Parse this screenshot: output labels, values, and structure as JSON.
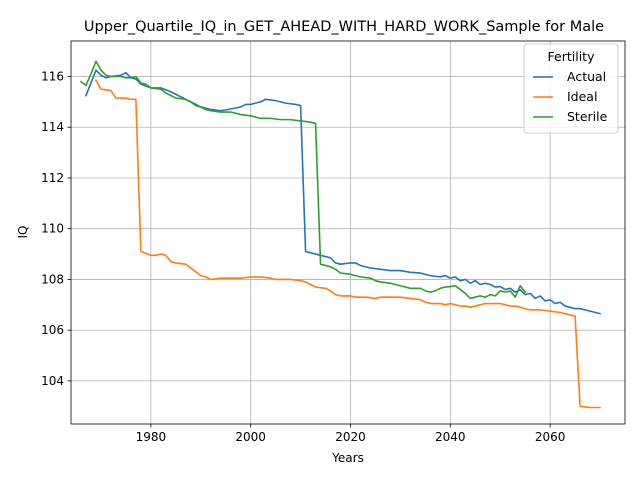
{
  "chart_data": {
    "type": "line",
    "title": "Upper_Quartile_IQ_in_GET_AHEAD_WITH_HARD_WORK_Sample for Male",
    "xlabel": "Years",
    "ylabel": "IQ",
    "xlim": [
      1964,
      2075
    ],
    "ylim": [
      102.3,
      117.4
    ],
    "xticks": [
      1980,
      2000,
      2020,
      2040,
      2060
    ],
    "yticks": [
      104,
      106,
      108,
      110,
      112,
      114,
      116
    ],
    "grid": true,
    "legend": {
      "title": "Fertility",
      "position": "top-right"
    },
    "series": [
      {
        "name": "Actual",
        "color": "#1f77b4",
        "points": [
          [
            1967,
            115.25
          ],
          [
            1969,
            116.25
          ],
          [
            1970,
            116.05
          ],
          [
            1971,
            115.95
          ],
          [
            1972,
            116.0
          ],
          [
            1974,
            116.05
          ],
          [
            1975,
            116.15
          ],
          [
            1976,
            115.95
          ],
          [
            1977,
            115.9
          ],
          [
            1978,
            115.7
          ],
          [
            1980,
            115.55
          ],
          [
            1982,
            115.55
          ],
          [
            1984,
            115.4
          ],
          [
            1986,
            115.2
          ],
          [
            1988,
            115.0
          ],
          [
            1990,
            114.8
          ],
          [
            1992,
            114.7
          ],
          [
            1994,
            114.65
          ],
          [
            1996,
            114.72
          ],
          [
            1998,
            114.8
          ],
          [
            1999,
            114.9
          ],
          [
            2000,
            114.9
          ],
          [
            2002,
            115.0
          ],
          [
            2003,
            115.1
          ],
          [
            2005,
            115.05
          ],
          [
            2007,
            114.95
          ],
          [
            2009,
            114.9
          ],
          [
            2010,
            114.85
          ],
          [
            2011,
            109.1
          ],
          [
            2012,
            109.05
          ],
          [
            2014,
            108.95
          ],
          [
            2016,
            108.85
          ],
          [
            2017,
            108.65
          ],
          [
            2018,
            108.6
          ],
          [
            2020,
            108.65
          ],
          [
            2021,
            108.65
          ],
          [
            2022,
            108.55
          ],
          [
            2024,
            108.45
          ],
          [
            2026,
            108.4
          ],
          [
            2028,
            108.35
          ],
          [
            2030,
            108.35
          ],
          [
            2032,
            108.28
          ],
          [
            2034,
            108.25
          ],
          [
            2035,
            108.2
          ],
          [
            2036,
            108.15
          ],
          [
            2038,
            108.1
          ],
          [
            2039,
            108.15
          ],
          [
            2040,
            108.05
          ],
          [
            2041,
            108.1
          ],
          [
            2042,
            107.95
          ],
          [
            2043,
            108.0
          ],
          [
            2044,
            107.85
          ],
          [
            2045,
            107.95
          ],
          [
            2046,
            107.8
          ],
          [
            2047,
            107.85
          ],
          [
            2048,
            107.8
          ],
          [
            2049,
            107.7
          ],
          [
            2050,
            107.72
          ],
          [
            2051,
            107.6
          ],
          [
            2052,
            107.65
          ],
          [
            2053,
            107.5
          ],
          [
            2054,
            107.6
          ],
          [
            2055,
            107.4
          ],
          [
            2056,
            107.45
          ],
          [
            2057,
            107.25
          ],
          [
            2058,
            107.35
          ],
          [
            2059,
            107.15
          ],
          [
            2060,
            107.2
          ],
          [
            2061,
            107.05
          ],
          [
            2062,
            107.1
          ],
          [
            2063,
            106.95
          ],
          [
            2064,
            106.9
          ],
          [
            2065,
            106.85
          ],
          [
            2066,
            106.85
          ],
          [
            2067,
            106.8
          ],
          [
            2068,
            106.75
          ],
          [
            2069,
            106.7
          ],
          [
            2070,
            106.65
          ]
        ]
      },
      {
        "name": "Ideal",
        "color": "#ff7f0e",
        "points": [
          [
            1969,
            115.85
          ],
          [
            1970,
            115.5
          ],
          [
            1972,
            115.45
          ],
          [
            1973,
            115.15
          ],
          [
            1975,
            115.15
          ],
          [
            1976,
            115.1
          ],
          [
            1977,
            115.1
          ],
          [
            1978,
            109.1
          ],
          [
            1980,
            108.95
          ],
          [
            1981,
            108.95
          ],
          [
            1982,
            109.0
          ],
          [
            1983,
            108.95
          ],
          [
            1984,
            108.7
          ],
          [
            1985,
            108.65
          ],
          [
            1987,
            108.6
          ],
          [
            1988,
            108.45
          ],
          [
            1989,
            108.3
          ],
          [
            1990,
            108.15
          ],
          [
            1991,
            108.1
          ],
          [
            1992,
            108.0
          ],
          [
            1994,
            108.05
          ],
          [
            1996,
            108.05
          ],
          [
            1998,
            108.05
          ],
          [
            2000,
            108.1
          ],
          [
            2002,
            108.1
          ],
          [
            2004,
            108.05
          ],
          [
            2005,
            108.0
          ],
          [
            2006,
            108.0
          ],
          [
            2008,
            108.0
          ],
          [
            2010,
            107.95
          ],
          [
            2011,
            107.9
          ],
          [
            2012,
            107.8
          ],
          [
            2013,
            107.7
          ],
          [
            2015,
            107.65
          ],
          [
            2016,
            107.55
          ],
          [
            2017,
            107.4
          ],
          [
            2018,
            107.35
          ],
          [
            2020,
            107.35
          ],
          [
            2021,
            107.3
          ],
          [
            2023,
            107.3
          ],
          [
            2025,
            107.25
          ],
          [
            2026,
            107.3
          ],
          [
            2027,
            107.3
          ],
          [
            2028,
            107.3
          ],
          [
            2030,
            107.3
          ],
          [
            2032,
            107.25
          ],
          [
            2034,
            107.2
          ],
          [
            2035,
            107.1
          ],
          [
            2036,
            107.05
          ],
          [
            2038,
            107.05
          ],
          [
            2039,
            107.0
          ],
          [
            2040,
            107.05
          ],
          [
            2041,
            107.0
          ],
          [
            2042,
            106.95
          ],
          [
            2043,
            106.95
          ],
          [
            2044,
            106.9
          ],
          [
            2045,
            106.95
          ],
          [
            2046,
            107.0
          ],
          [
            2047,
            107.05
          ],
          [
            2048,
            107.05
          ],
          [
            2050,
            107.05
          ],
          [
            2051,
            107.0
          ],
          [
            2052,
            106.95
          ],
          [
            2053,
            106.95
          ],
          [
            2054,
            106.9
          ],
          [
            2055,
            106.85
          ],
          [
            2056,
            106.8
          ],
          [
            2058,
            106.8
          ],
          [
            2060,
            106.75
          ],
          [
            2062,
            106.7
          ],
          [
            2063,
            106.65
          ],
          [
            2064,
            106.6
          ],
          [
            2065,
            106.55
          ],
          [
            2066,
            103.0
          ],
          [
            2068,
            102.95
          ],
          [
            2070,
            102.95
          ]
        ]
      },
      {
        "name": "Sterile",
        "color": "#2ca02c",
        "points": [
          [
            1966,
            115.8
          ],
          [
            1967,
            115.65
          ],
          [
            1968,
            116.1
          ],
          [
            1969,
            116.6
          ],
          [
            1970,
            116.25
          ],
          [
            1971,
            116.05
          ],
          [
            1972,
            116.0
          ],
          [
            1974,
            116.0
          ],
          [
            1975,
            115.95
          ],
          [
            1976,
            115.95
          ],
          [
            1977,
            116.0
          ],
          [
            1978,
            115.75
          ],
          [
            1979,
            115.7
          ],
          [
            1980,
            115.55
          ],
          [
            1982,
            115.5
          ],
          [
            1983,
            115.35
          ],
          [
            1984,
            115.25
          ],
          [
            1985,
            115.15
          ],
          [
            1987,
            115.1
          ],
          [
            1988,
            115.0
          ],
          [
            1989,
            114.85
          ],
          [
            1990,
            114.8
          ],
          [
            1991,
            114.7
          ],
          [
            1992,
            114.65
          ],
          [
            1994,
            114.6
          ],
          [
            1996,
            114.6
          ],
          [
            1998,
            114.5
          ],
          [
            2000,
            114.45
          ],
          [
            2002,
            114.35
          ],
          [
            2004,
            114.35
          ],
          [
            2006,
            114.3
          ],
          [
            2008,
            114.3
          ],
          [
            2010,
            114.25
          ],
          [
            2012,
            114.2
          ],
          [
            2013,
            114.15
          ],
          [
            2014,
            108.6
          ],
          [
            2016,
            108.5
          ],
          [
            2017,
            108.4
          ],
          [
            2018,
            108.25
          ],
          [
            2020,
            108.2
          ],
          [
            2022,
            108.1
          ],
          [
            2024,
            108.05
          ],
          [
            2025,
            107.95
          ],
          [
            2026,
            107.9
          ],
          [
            2028,
            107.85
          ],
          [
            2030,
            107.75
          ],
          [
            2032,
            107.65
          ],
          [
            2034,
            107.65
          ],
          [
            2035,
            107.55
          ],
          [
            2036,
            107.5
          ],
          [
            2037,
            107.55
          ],
          [
            2038,
            107.65
          ],
          [
            2039,
            107.7
          ],
          [
            2040,
            107.72
          ],
          [
            2041,
            107.75
          ],
          [
            2042,
            107.6
          ],
          [
            2043,
            107.45
          ],
          [
            2044,
            107.25
          ],
          [
            2045,
            107.3
          ],
          [
            2046,
            107.35
          ],
          [
            2047,
            107.3
          ],
          [
            2048,
            107.4
          ],
          [
            2049,
            107.35
          ],
          [
            2050,
            107.55
          ],
          [
            2051,
            107.5
          ],
          [
            2052,
            107.55
          ],
          [
            2053,
            107.3
          ],
          [
            2054,
            107.75
          ],
          [
            2055,
            107.5
          ]
        ]
      }
    ]
  }
}
